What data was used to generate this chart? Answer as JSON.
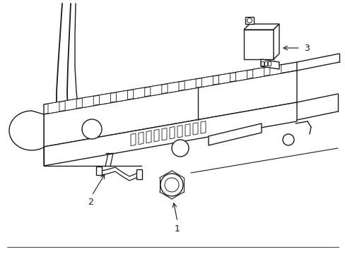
{
  "background_color": "#ffffff",
  "line_color": "#1a1a1a",
  "line_width": 1.0,
  "fig_width": 4.89,
  "fig_height": 3.6,
  "dpi": 100,
  "callout_fontsize": 9
}
